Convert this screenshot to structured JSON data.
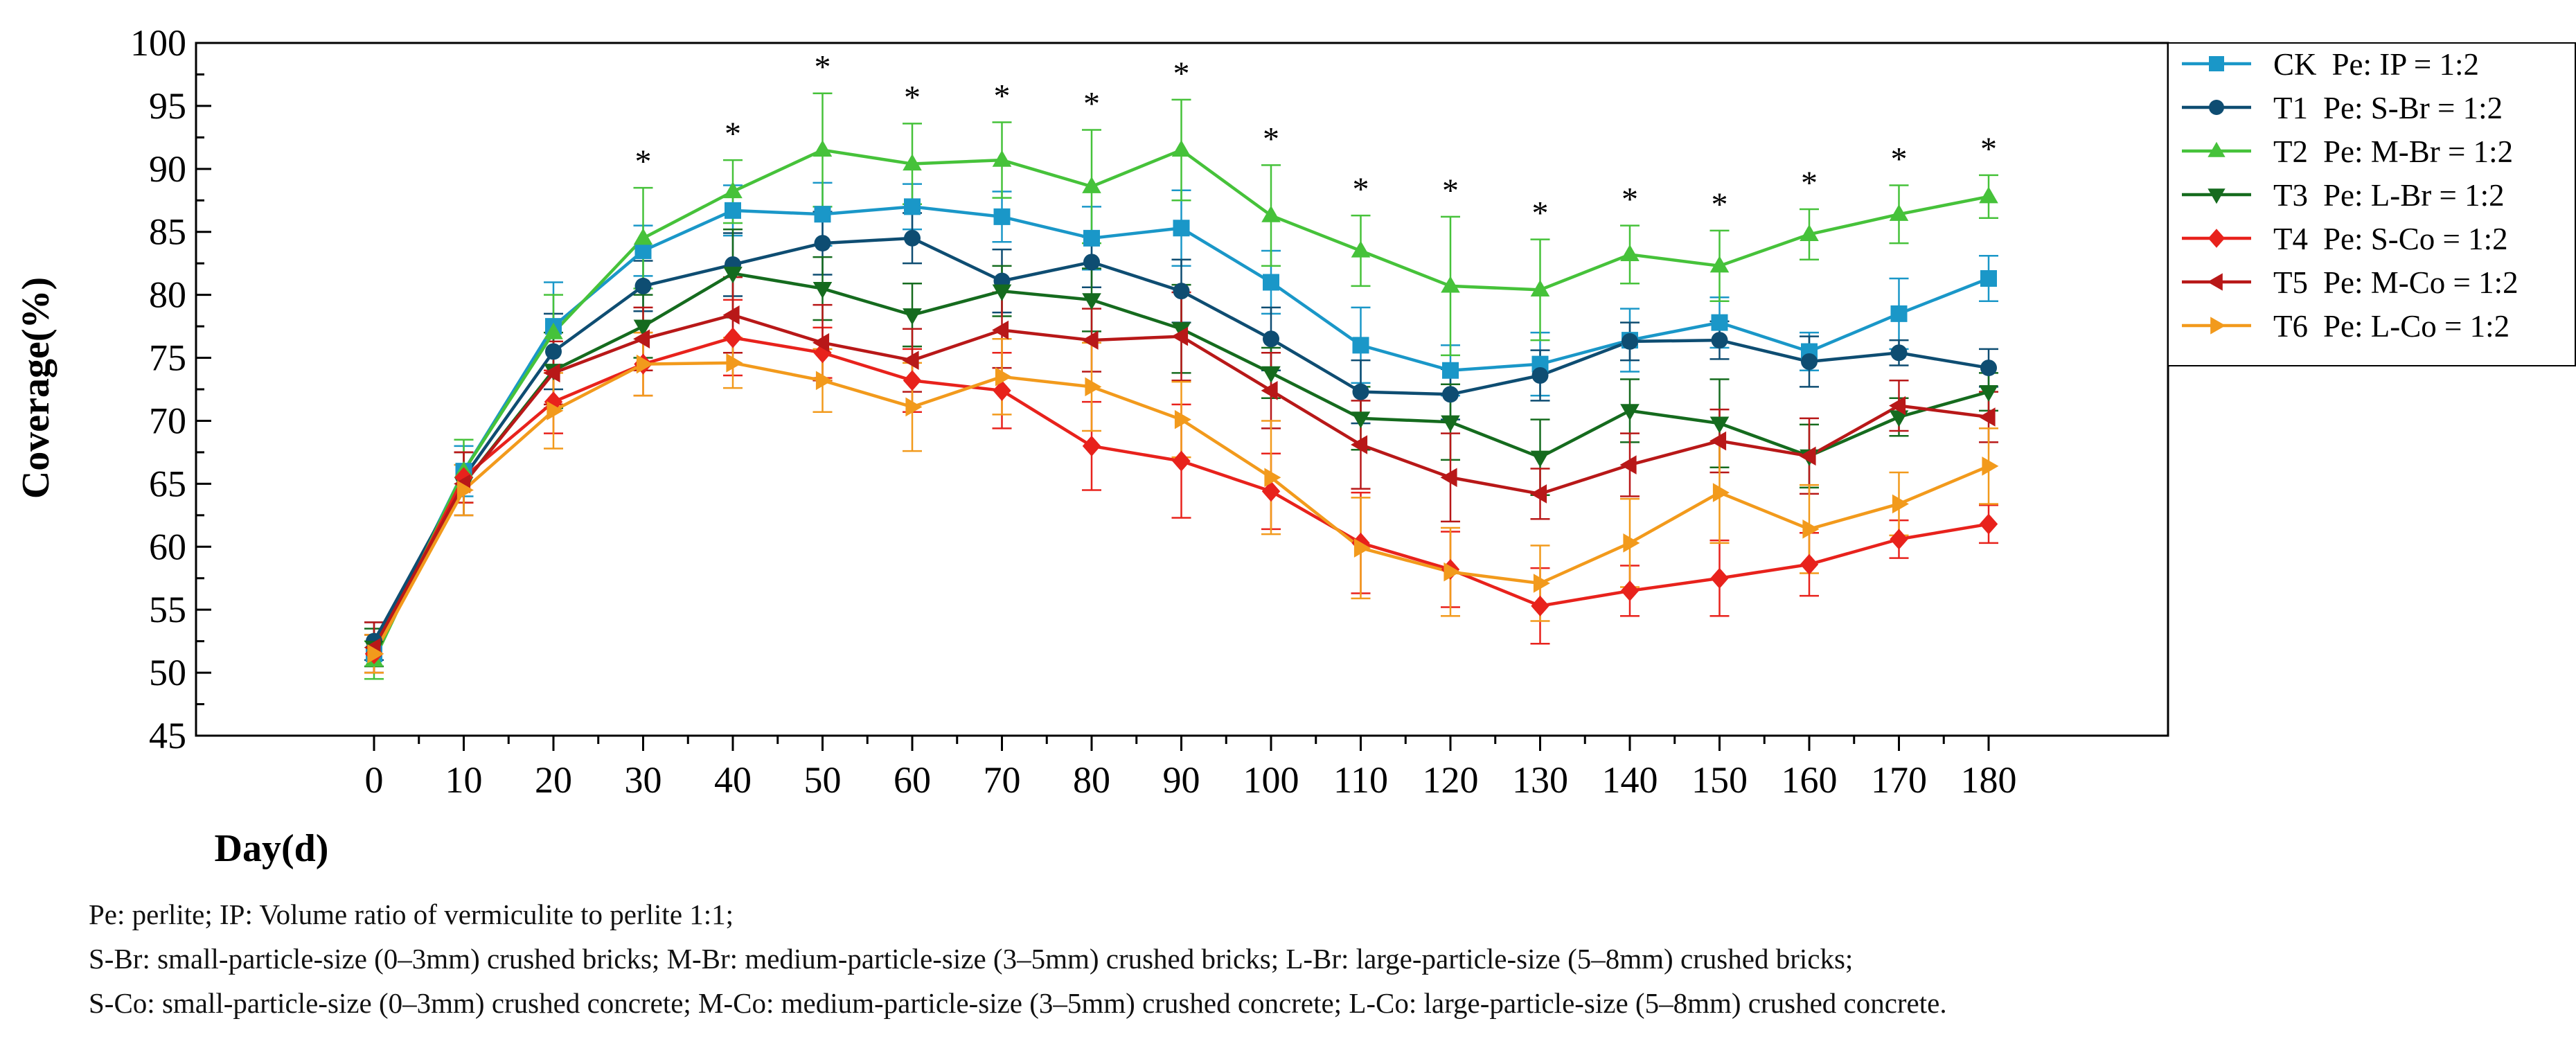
{
  "chart_data": {
    "type": "line",
    "xlabel": "Day(d)",
    "ylabel": "Coverage(%)",
    "ylim": [
      45,
      100
    ],
    "yticks": [
      45,
      50,
      55,
      60,
      65,
      70,
      75,
      80,
      85,
      90,
      95,
      100
    ],
    "x": [
      0,
      10,
      20,
      30,
      40,
      50,
      60,
      70,
      80,
      90,
      100,
      110,
      120,
      130,
      140,
      150,
      160,
      170,
      180
    ],
    "significance_marker": "*",
    "significant_days": [
      30,
      40,
      50,
      60,
      70,
      80,
      90,
      100,
      110,
      120,
      130,
      140,
      150,
      160,
      170,
      180
    ],
    "grid": false,
    "legend_position": "right",
    "series": [
      {
        "code": "CK",
        "treatment": "Pe: IP = 1:2",
        "color": "#1a97c8",
        "marker": "square",
        "values": [
          51.5,
          66.0,
          77.5,
          83.5,
          86.7,
          86.4,
          87.0,
          86.2,
          84.5,
          85.3,
          81.0,
          76.0,
          74.0,
          74.5,
          76.4,
          77.8,
          75.5,
          78.5,
          81.3
        ],
        "errors": [
          1.5,
          2.0,
          3.5,
          2.0,
          2.0,
          2.5,
          1.8,
          2.0,
          2.5,
          3.0,
          2.5,
          3.0,
          2.0,
          2.5,
          2.5,
          2.0,
          1.5,
          2.8,
          1.8
        ]
      },
      {
        "code": "T1",
        "treatment": "Pe: S-Br = 1:2",
        "color": "#0e4d72",
        "marker": "circle",
        "values": [
          52.5,
          65.5,
          75.5,
          80.7,
          82.4,
          84.1,
          84.5,
          81.1,
          82.6,
          80.3,
          76.5,
          72.3,
          72.1,
          73.6,
          76.3,
          76.4,
          74.7,
          75.4,
          74.2
        ],
        "errors": [
          1.5,
          2.0,
          3.0,
          2.0,
          2.5,
          2.5,
          2.0,
          2.5,
          2.0,
          2.5,
          2.5,
          2.5,
          2.0,
          2.0,
          1.5,
          1.5,
          2.0,
          1.0,
          1.5
        ]
      },
      {
        "code": "T2",
        "treatment": "Pe: M-Br = 1:2",
        "color": "#46c23a",
        "marker": "triangle-up",
        "values": [
          51.0,
          66.0,
          77.0,
          84.5,
          88.2,
          91.5,
          90.4,
          90.7,
          88.6,
          91.5,
          86.3,
          83.5,
          80.7,
          80.4,
          83.2,
          82.3,
          84.8,
          86.4,
          87.8
        ],
        "errors": [
          1.5,
          2.5,
          3.0,
          4.0,
          2.5,
          4.5,
          3.2,
          3.0,
          4.5,
          4.0,
          4.0,
          2.8,
          5.5,
          4.0,
          2.3,
          2.8,
          2.0,
          2.3,
          1.7
        ]
      },
      {
        "code": "T3",
        "treatment": "Pe: L-Br = 1:2",
        "color": "#156b1e",
        "marker": "triangle-down",
        "values": [
          52.0,
          65.0,
          74.0,
          77.5,
          81.7,
          80.5,
          78.4,
          80.3,
          79.6,
          77.3,
          73.8,
          70.2,
          69.9,
          67.1,
          70.8,
          69.8,
          67.2,
          70.3,
          72.3
        ],
        "errors": [
          1.5,
          2.5,
          3.0,
          2.5,
          3.5,
          2.5,
          2.5,
          2.0,
          2.5,
          3.5,
          2.0,
          2.5,
          3.0,
          3.0,
          2.5,
          3.5,
          2.5,
          1.5,
          1.5
        ]
      },
      {
        "code": "T4",
        "treatment": "Pe: S-Co = 1:2",
        "color": "#e8221c",
        "marker": "diamond",
        "values": [
          51.5,
          65.5,
          71.5,
          74.5,
          76.6,
          75.4,
          73.2,
          72.4,
          68.0,
          66.8,
          64.4,
          60.3,
          58.2,
          55.3,
          56.5,
          57.5,
          58.6,
          60.6,
          61.8
        ],
        "errors": [
          1.5,
          2.0,
          2.5,
          2.5,
          3.0,
          2.0,
          2.5,
          3.0,
          3.5,
          4.5,
          3.0,
          4.0,
          3.0,
          3.0,
          2.0,
          3.0,
          2.5,
          1.5,
          1.5
        ]
      },
      {
        "code": "T5",
        "treatment": "Pe: M-Co = 1:2",
        "color": "#b81818",
        "marker": "triangle-left",
        "values": [
          52.0,
          65.0,
          73.8,
          76.5,
          78.4,
          76.2,
          74.8,
          77.2,
          76.4,
          76.7,
          72.4,
          68.1,
          65.5,
          64.2,
          66.5,
          68.4,
          67.2,
          71.2,
          70.3
        ],
        "errors": [
          2.0,
          2.5,
          2.5,
          2.5,
          3.0,
          3.0,
          2.5,
          3.0,
          2.5,
          3.5,
          3.0,
          3.5,
          3.5,
          2.0,
          2.5,
          2.5,
          3.0,
          2.0,
          2.0
        ]
      },
      {
        "code": "T6",
        "treatment": "Pe: L-Co = 1:2",
        "color": "#f29a1c",
        "marker": "triangle-right",
        "values": [
          51.5,
          64.5,
          70.8,
          74.5,
          74.6,
          73.2,
          71.1,
          73.5,
          72.7,
          70.1,
          65.5,
          59.9,
          58.0,
          57.1,
          60.3,
          64.3,
          61.4,
          63.4,
          66.4
        ],
        "errors": [
          1.5,
          2.0,
          3.0,
          2.5,
          2.0,
          2.5,
          3.5,
          3.0,
          3.5,
          3.0,
          4.5,
          4.0,
          3.5,
          3.0,
          3.5,
          4.0,
          3.5,
          2.5,
          3.0
        ]
      }
    ]
  },
  "footnotes": {
    "line1": "Pe: perlite; IP: Volume ratio of vermiculite to perlite 1:1;",
    "line2": "S-Br: small-particle-size (0–3mm) crushed bricks; M-Br: medium-particle-size (3–5mm) crushed bricks; L-Br: large-particle-size (5–8mm) crushed bricks;",
    "line3": "S-Co: small-particle-size (0–3mm) crushed concrete; M-Co: medium-particle-size (3–5mm) crushed concrete; L-Co: large-particle-size (5–8mm) crushed concrete."
  }
}
